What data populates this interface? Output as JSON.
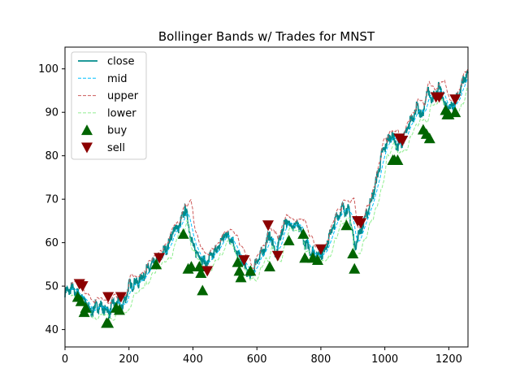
{
  "chart_data": {
    "type": "line",
    "title": "Bollinger Bands w/ Trades for MNST",
    "xlabel": "",
    "ylabel": "",
    "xlim": [
      0,
      1260
    ],
    "ylim": [
      36,
      105
    ],
    "x_ticks": [
      0,
      200,
      400,
      600,
      800,
      1000,
      1200
    ],
    "y_ticks": [
      40,
      50,
      60,
      70,
      80,
      90,
      100
    ],
    "x_tick_labels": [
      "0",
      "200",
      "400",
      "600",
      "800",
      "1000",
      "1200"
    ],
    "y_tick_labels": [
      "40",
      "50",
      "60",
      "70",
      "80",
      "90",
      "100"
    ],
    "grid": false,
    "legend_position": "top-left",
    "colors": {
      "close": "#008b8b",
      "mid": "#00bfff",
      "upper": "#cd5c5c",
      "lower": "#90ee90",
      "buy": "#006400",
      "sell": "#8b0000"
    },
    "legend": [
      "close",
      "mid",
      "upper",
      "lower",
      "buy",
      "sell"
    ],
    "close_anchors": [
      [
        0,
        48.5
      ],
      [
        20,
        49.5
      ],
      [
        40,
        48
      ],
      [
        60,
        47
      ],
      [
        80,
        44
      ],
      [
        100,
        45.5
      ],
      [
        120,
        45
      ],
      [
        140,
        44
      ],
      [
        150,
        46
      ],
      [
        170,
        46
      ],
      [
        180,
        45
      ],
      [
        200,
        50
      ],
      [
        230,
        51
      ],
      [
        260,
        54
      ],
      [
        290,
        56
      ],
      [
        320,
        59
      ],
      [
        340,
        63
      ],
      [
        360,
        64
      ],
      [
        375,
        68
      ],
      [
        390,
        63
      ],
      [
        400,
        59
      ],
      [
        420,
        57
      ],
      [
        440,
        55
      ],
      [
        460,
        57
      ],
      [
        480,
        59
      ],
      [
        500,
        62
      ],
      [
        520,
        61
      ],
      [
        540,
        57
      ],
      [
        560,
        55
      ],
      [
        580,
        52
      ],
      [
        600,
        56
      ],
      [
        620,
        58
      ],
      [
        640,
        62
      ],
      [
        660,
        57
      ],
      [
        675,
        62
      ],
      [
        690,
        65
      ],
      [
        710,
        64
      ],
      [
        730,
        64
      ],
      [
        750,
        60
      ],
      [
        770,
        58
      ],
      [
        790,
        57
      ],
      [
        810,
        58
      ],
      [
        830,
        62
      ],
      [
        850,
        66
      ],
      [
        870,
        68
      ],
      [
        890,
        67
      ],
      [
        905,
        59
      ],
      [
        920,
        62
      ],
      [
        935,
        65
      ],
      [
        950,
        68
      ],
      [
        970,
        73
      ],
      [
        990,
        80
      ],
      [
        1000,
        82
      ],
      [
        1020,
        85
      ],
      [
        1040,
        82
      ],
      [
        1060,
        84
      ],
      [
        1080,
        88
      ],
      [
        1100,
        91
      ],
      [
        1120,
        89
      ],
      [
        1130,
        95
      ],
      [
        1150,
        93
      ],
      [
        1170,
        96
      ],
      [
        1190,
        91
      ],
      [
        1210,
        91
      ],
      [
        1230,
        94
      ],
      [
        1250,
        98
      ],
      [
        1260,
        99
      ]
    ],
    "buy_signals": [
      [
        40,
        47.5
      ],
      [
        50,
        46.5
      ],
      [
        60,
        44
      ],
      [
        65,
        45
      ],
      [
        130,
        41.5
      ],
      [
        135,
        41.5
      ],
      [
        160,
        45
      ],
      [
        170,
        44.5
      ],
      [
        285,
        55
      ],
      [
        370,
        62
      ],
      [
        385,
        54
      ],
      [
        395,
        54.5
      ],
      [
        420,
        54.5
      ],
      [
        425,
        53
      ],
      [
        430,
        49
      ],
      [
        540,
        55.5
      ],
      [
        545,
        53.5
      ],
      [
        550,
        52
      ],
      [
        580,
        53.5
      ],
      [
        640,
        54.5
      ],
      [
        700,
        60.5
      ],
      [
        745,
        62
      ],
      [
        750,
        56.5
      ],
      [
        775,
        56.5
      ],
      [
        790,
        56
      ],
      [
        880,
        64
      ],
      [
        900,
        57.5
      ],
      [
        905,
        54
      ],
      [
        1025,
        79
      ],
      [
        1030,
        79
      ],
      [
        1040,
        79
      ],
      [
        1120,
        86
      ],
      [
        1130,
        85
      ],
      [
        1140,
        84
      ],
      [
        1190,
        90.5
      ],
      [
        1195,
        89.5
      ],
      [
        1200,
        89.5
      ],
      [
        1220,
        90
      ]
    ],
    "sell_signals": [
      [
        45,
        50.5
      ],
      [
        55,
        50
      ],
      [
        135,
        47.5
      ],
      [
        175,
        47.5
      ],
      [
        295,
        56.5
      ],
      [
        445,
        53.5
      ],
      [
        560,
        56
      ],
      [
        635,
        64
      ],
      [
        665,
        57
      ],
      [
        800,
        58.5
      ],
      [
        915,
        65
      ],
      [
        925,
        64.5
      ],
      [
        1045,
        84
      ],
      [
        1055,
        83.5
      ],
      [
        1160,
        93.5
      ],
      [
        1170,
        93.5
      ],
      [
        1220,
        93
      ]
    ],
    "band_params": {
      "window": 20,
      "num_std": 2
    }
  }
}
